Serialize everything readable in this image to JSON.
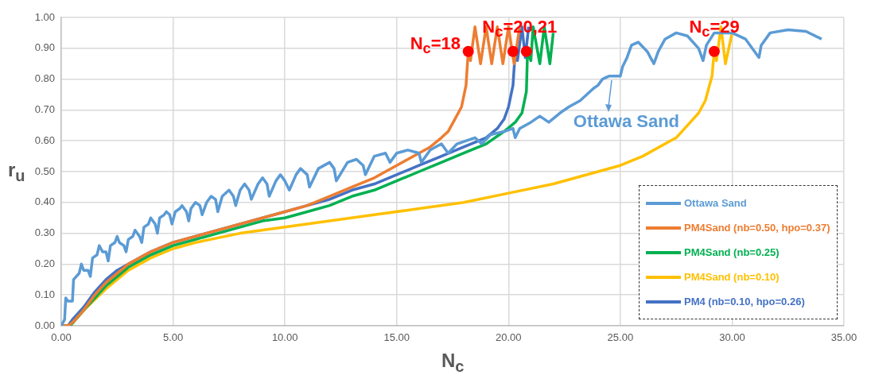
{
  "chart_data": {
    "type": "line",
    "xlabel": "N$_{c}$",
    "ylabel": "r$_{u}$",
    "xlim": [
      0,
      35
    ],
    "xticks": [
      {
        "value": 0,
        "label": "0.00"
      },
      {
        "value": 5,
        "label": "5.00"
      },
      {
        "value": 10,
        "label": "10.00"
      },
      {
        "value": 15,
        "label": "15.00"
      },
      {
        "value": 20,
        "label": "20.00"
      },
      {
        "value": 25,
        "label": "25.00"
      },
      {
        "value": 30,
        "label": "30.00"
      },
      {
        "value": 35,
        "label": "35.00"
      }
    ],
    "ylim": [
      0,
      1
    ],
    "yticks": [
      {
        "value": 0,
        "label": "0.00"
      },
      {
        "value": 0.1,
        "label": "0.10"
      },
      {
        "value": 0.2,
        "label": "0.20"
      },
      {
        "value": 0.3,
        "label": "0.30"
      },
      {
        "value": 0.4,
        "label": "0.40"
      },
      {
        "value": 0.5,
        "label": "0.50"
      },
      {
        "value": 0.6,
        "label": "0.60"
      },
      {
        "value": 0.7,
        "label": "0.70"
      },
      {
        "value": 0.8,
        "label": "0.80"
      },
      {
        "value": 0.9,
        "label": "0.90"
      },
      {
        "value": 1,
        "label": "1.00"
      }
    ],
    "grid": true,
    "legend": "bottom right",
    "marker": "none",
    "line_style": "solid",
    "series": [
      {
        "name": "Ottawa Sand",
        "color": "#5b9bd5",
        "x": [
          0,
          0.15,
          0.2,
          0.3,
          0.5,
          0.55,
          0.8,
          0.9,
          1.0,
          1.2,
          1.3,
          1.4,
          1.6,
          1.7,
          1.85,
          2.0,
          2.1,
          2.2,
          2.4,
          2.5,
          2.6,
          2.8,
          2.9,
          3.0,
          3.2,
          3.3,
          3.5,
          3.6,
          3.7,
          3.9,
          4.0,
          4.2,
          4.3,
          4.4,
          4.6,
          4.7,
          4.85,
          4.95,
          5.1,
          5.3,
          5.4,
          5.6,
          5.7,
          5.8,
          6.0,
          6.2,
          6.3,
          6.5,
          6.7,
          6.9,
          7.0,
          7.2,
          7.5,
          7.7,
          7.8,
          8.0,
          8.2,
          8.4,
          8.5,
          8.8,
          9.0,
          9.2,
          9.3,
          9.6,
          9.8,
          10.0,
          10.2,
          10.5,
          10.7,
          11.0,
          11.1,
          11.5,
          12.0,
          12.2,
          12.3,
          12.8,
          13.2,
          13.5,
          13.6,
          14.0,
          14.5,
          14.7,
          15.0,
          15.5,
          16.0,
          16.1,
          16.5,
          17.0,
          17.3,
          17.7,
          18.5,
          18.8,
          19.2,
          19.8,
          20.2,
          20.3,
          20.5,
          21.0,
          21.4,
          21.8,
          22.3,
          22.7,
          23.2,
          23.5,
          23.8,
          24.0,
          24.2,
          24.5,
          25.0,
          25.1,
          25.3,
          25.5,
          25.8,
          26.2,
          26.5,
          26.7,
          27.0,
          27.5,
          28.0,
          28.5,
          28.7,
          28.85,
          29.2,
          30.0,
          30.6,
          31.2,
          31.3,
          31.7,
          32.5,
          33.3,
          34.0
        ],
        "values": [
          0,
          0.02,
          0.09,
          0.08,
          0.08,
          0.15,
          0.17,
          0.2,
          0.18,
          0.18,
          0.16,
          0.22,
          0.23,
          0.26,
          0.24,
          0.24,
          0.21,
          0.26,
          0.27,
          0.29,
          0.27,
          0.26,
          0.24,
          0.28,
          0.29,
          0.31,
          0.29,
          0.27,
          0.32,
          0.33,
          0.35,
          0.33,
          0.3,
          0.35,
          0.36,
          0.37,
          0.36,
          0.33,
          0.37,
          0.38,
          0.39,
          0.37,
          0.34,
          0.38,
          0.4,
          0.39,
          0.36,
          0.4,
          0.42,
          0.41,
          0.37,
          0.42,
          0.44,
          0.42,
          0.39,
          0.44,
          0.46,
          0.44,
          0.41,
          0.46,
          0.48,
          0.46,
          0.42,
          0.47,
          0.49,
          0.47,
          0.44,
          0.49,
          0.51,
          0.49,
          0.45,
          0.51,
          0.53,
          0.51,
          0.47,
          0.53,
          0.54,
          0.52,
          0.49,
          0.55,
          0.56,
          0.53,
          0.56,
          0.57,
          0.56,
          0.53,
          0.57,
          0.59,
          0.56,
          0.59,
          0.61,
          0.59,
          0.62,
          0.63,
          0.64,
          0.61,
          0.64,
          0.66,
          0.68,
          0.66,
          0.69,
          0.71,
          0.73,
          0.75,
          0.77,
          0.78,
          0.8,
          0.81,
          0.81,
          0.84,
          0.87,
          0.91,
          0.92,
          0.89,
          0.85,
          0.89,
          0.93,
          0.95,
          0.94,
          0.9,
          0.86,
          0.91,
          0.95,
          0.95,
          0.93,
          0.87,
          0.91,
          0.95,
          0.96,
          0.955,
          0.93
        ]
      },
      {
        "name": "PM4Sand (nb=0.50, hpo=0.37)",
        "color": "#ed7d31",
        "x": [
          0,
          0.3,
          0.5,
          1,
          1.5,
          2,
          2.5,
          3,
          4,
          5,
          6,
          7,
          8,
          9,
          10,
          11,
          12,
          13,
          14,
          15,
          15.5,
          16,
          16.5,
          17,
          17.3,
          17.6,
          17.9,
          18.1,
          18.2,
          18.3,
          18.5,
          18.75,
          19.0,
          19.25,
          19.5,
          19.75,
          20.0,
          20.25,
          20.5
        ],
        "values": [
          0,
          0,
          0.01,
          0.05,
          0.1,
          0.14,
          0.17,
          0.2,
          0.24,
          0.27,
          0.29,
          0.31,
          0.33,
          0.35,
          0.37,
          0.39,
          0.42,
          0.45,
          0.48,
          0.52,
          0.54,
          0.56,
          0.58,
          0.61,
          0.63,
          0.67,
          0.71,
          0.78,
          0.89,
          0.86,
          0.97,
          0.85,
          0.97,
          0.85,
          0.97,
          0.85,
          0.97,
          0.85,
          0.97
        ]
      },
      {
        "name": "PM4Sand (nb=0.25)",
        "color": "#00b050",
        "x": [
          0,
          0.4,
          1,
          2,
          3,
          4,
          5,
          6,
          7,
          8,
          9,
          10,
          11,
          12,
          13,
          14,
          15,
          16,
          17,
          18,
          19,
          19.8,
          20.3,
          20.6,
          20.8,
          20.85,
          21.0,
          21.1,
          21.4,
          21.6,
          21.85,
          22.0
        ],
        "values": [
          0,
          0,
          0.05,
          0.13,
          0.19,
          0.23,
          0.26,
          0.28,
          0.3,
          0.32,
          0.34,
          0.35,
          0.37,
          0.39,
          0.42,
          0.44,
          0.47,
          0.5,
          0.53,
          0.56,
          0.59,
          0.63,
          0.66,
          0.69,
          0.76,
          0.89,
          0.86,
          0.97,
          0.85,
          0.97,
          0.85,
          0.95
        ]
      },
      {
        "name": "PM4Sand (nb=0.10)",
        "color": "#ffc000",
        "x": [
          0,
          0.4,
          1,
          2,
          3,
          4,
          5,
          6,
          8,
          10,
          12,
          14,
          16,
          18,
          20,
          22,
          24,
          25,
          26,
          27,
          27.5,
          28,
          28.5,
          28.8,
          29.1,
          29.2,
          29.3,
          29.5,
          29.7,
          30.0
        ],
        "values": [
          0,
          0,
          0.05,
          0.12,
          0.18,
          0.22,
          0.25,
          0.27,
          0.3,
          0.32,
          0.34,
          0.36,
          0.38,
          0.4,
          0.43,
          0.46,
          0.5,
          0.52,
          0.55,
          0.59,
          0.61,
          0.65,
          0.69,
          0.73,
          0.81,
          0.89,
          0.86,
          0.97,
          0.85,
          0.95
        ]
      },
      {
        "name": "PM4 (nb=0.10, hpo=0.26)",
        "color": "#4472c4",
        "x": [
          0,
          0.3,
          0.5,
          1,
          1.5,
          2,
          2.5,
          3,
          4,
          5,
          6,
          7,
          8,
          9,
          10,
          11,
          12,
          13,
          14,
          15,
          16,
          17,
          18,
          19,
          19.5,
          19.8,
          20.0,
          20.2,
          20.3,
          20.4,
          20.6,
          20.75,
          20.9
        ],
        "values": [
          0,
          0,
          0.02,
          0.06,
          0.11,
          0.15,
          0.18,
          0.2,
          0.24,
          0.27,
          0.29,
          0.31,
          0.33,
          0.35,
          0.37,
          0.39,
          0.41,
          0.44,
          0.46,
          0.49,
          0.52,
          0.55,
          0.58,
          0.61,
          0.64,
          0.67,
          0.71,
          0.78,
          0.89,
          0.86,
          0.97,
          0.87,
          0.97
        ]
      },
      {
        "type": "scatter",
        "marker": "circle",
        "color": "#ff0000",
        "x": [
          18.2,
          20.2,
          20.8,
          29.2
        ],
        "values": [
          0.89,
          0.89,
          0.89,
          0.89
        ]
      }
    ],
    "annotations": [
      {
        "text": "N$_{c}$=18",
        "x": 18.2,
        "y": 0.89
      },
      {
        "text": "N$_{c}$=20,21",
        "x": 20.5,
        "y": 0.89
      },
      {
        "text": "N$_{c}$=29",
        "x": 29.2,
        "y": 0.89
      },
      {
        "text": "Ottawa Sand",
        "x": 24.5,
        "y": 0.81
      }
    ]
  }
}
